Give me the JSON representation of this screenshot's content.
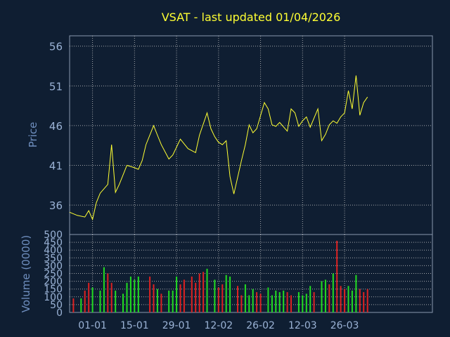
{
  "chart_data": [
    {
      "type": "line",
      "title": "VSAT - last updated 01/04/2026",
      "ylabel": "Price",
      "ylim": [
        32.3,
        57.3
      ],
      "yticks": [
        36,
        41,
        46,
        51,
        56
      ],
      "xlim": [
        0,
        95
      ],
      "xtick_labels": [
        {
          "x": 6,
          "label": "01-01"
        },
        {
          "x": 17,
          "label": "15-01"
        },
        {
          "x": 28,
          "label": "29-01"
        },
        {
          "x": 39,
          "label": "12-02"
        },
        {
          "x": 50,
          "label": "26-02"
        },
        {
          "x": 61,
          "label": "12-03"
        },
        {
          "x": 72,
          "label": "26-03"
        }
      ],
      "grid": true,
      "line_color": "#ffff33",
      "series": [
        {
          "x": [
            0,
            2,
            4,
            5,
            6,
            7,
            8,
            10,
            11,
            12,
            13,
            15,
            17,
            18,
            19,
            20,
            22,
            23,
            24,
            26,
            27,
            29,
            31,
            33,
            34,
            36,
            37,
            38,
            39,
            40,
            41,
            42,
            43,
            45,
            46,
            47,
            48,
            49,
            51,
            52,
            53,
            54,
            55,
            57,
            58,
            59,
            60,
            61,
            62,
            63,
            65,
            66,
            67,
            68,
            69,
            70,
            71,
            72,
            73,
            74,
            75,
            76,
            77,
            78
          ],
          "values": [
            35.1,
            34.7,
            34.5,
            35.3,
            34.2,
            36.3,
            37.5,
            38.6,
            43.6,
            37.6,
            38.6,
            41.0,
            40.7,
            40.5,
            41.6,
            43.6,
            46.0,
            44.8,
            43.6,
            41.8,
            42.3,
            44.3,
            43.1,
            42.6,
            44.8,
            47.6,
            45.6,
            44.6,
            43.9,
            43.6,
            44.1,
            39.6,
            37.4,
            41.6,
            43.6,
            46.1,
            45.1,
            45.6,
            48.9,
            48.1,
            46.1,
            45.9,
            46.4,
            45.3,
            48.1,
            47.6,
            45.9,
            46.6,
            47.1,
            45.8,
            48.1,
            44.1,
            44.9,
            46.1,
            46.6,
            46.3,
            47.1,
            47.6,
            50.4,
            48.1,
            52.3,
            47.3,
            48.9,
            49.6
          ]
        }
      ]
    },
    {
      "type": "bar",
      "ylabel": "Volume (0000)",
      "ylim": [
        0,
        500
      ],
      "yticks": [
        0,
        50,
        100,
        150,
        200,
        250,
        300,
        350,
        400,
        450,
        500
      ],
      "up_color": "#22dd22",
      "down_color": "#dd2222",
      "bars": [
        {
          "x": 1,
          "v": 90,
          "c": "down"
        },
        {
          "x": 3,
          "v": 90,
          "c": "up"
        },
        {
          "x": 4,
          "v": 140,
          "c": "down"
        },
        {
          "x": 5,
          "v": 190,
          "c": "down"
        },
        {
          "x": 6,
          "v": 160,
          "c": "up"
        },
        {
          "x": 8,
          "v": 140,
          "c": "up"
        },
        {
          "x": 9,
          "v": 290,
          "c": "up"
        },
        {
          "x": 10,
          "v": 250,
          "c": "down"
        },
        {
          "x": 11,
          "v": 190,
          "c": "down"
        },
        {
          "x": 12,
          "v": 140,
          "c": "up"
        },
        {
          "x": 14,
          "v": 120,
          "c": "up"
        },
        {
          "x": 15,
          "v": 190,
          "c": "up"
        },
        {
          "x": 16,
          "v": 230,
          "c": "up"
        },
        {
          "x": 17,
          "v": 210,
          "c": "up"
        },
        {
          "x": 18,
          "v": 230,
          "c": "up"
        },
        {
          "x": 21,
          "v": 230,
          "c": "down"
        },
        {
          "x": 22,
          "v": 180,
          "c": "down"
        },
        {
          "x": 23,
          "v": 150,
          "c": "up"
        },
        {
          "x": 24,
          "v": 120,
          "c": "down"
        },
        {
          "x": 26,
          "v": 140,
          "c": "up"
        },
        {
          "x": 27,
          "v": 140,
          "c": "up"
        },
        {
          "x": 28,
          "v": 230,
          "c": "up"
        },
        {
          "x": 29,
          "v": 180,
          "c": "down"
        },
        {
          "x": 30,
          "v": 210,
          "c": "down"
        },
        {
          "x": 32,
          "v": 230,
          "c": "down"
        },
        {
          "x": 33,
          "v": 190,
          "c": "down"
        },
        {
          "x": 34,
          "v": 250,
          "c": "down"
        },
        {
          "x": 35,
          "v": 260,
          "c": "down"
        },
        {
          "x": 36,
          "v": 280,
          "c": "up"
        },
        {
          "x": 38,
          "v": 210,
          "c": "up"
        },
        {
          "x": 39,
          "v": 160,
          "c": "down"
        },
        {
          "x": 40,
          "v": 180,
          "c": "down"
        },
        {
          "x": 41,
          "v": 240,
          "c": "up"
        },
        {
          "x": 42,
          "v": 230,
          "c": "up"
        },
        {
          "x": 44,
          "v": 170,
          "c": "down"
        },
        {
          "x": 45,
          "v": 110,
          "c": "down"
        },
        {
          "x": 46,
          "v": 180,
          "c": "up"
        },
        {
          "x": 47,
          "v": 110,
          "c": "up"
        },
        {
          "x": 48,
          "v": 150,
          "c": "up"
        },
        {
          "x": 49,
          "v": 130,
          "c": "down"
        },
        {
          "x": 50,
          "v": 120,
          "c": "down"
        },
        {
          "x": 52,
          "v": 160,
          "c": "up"
        },
        {
          "x": 53,
          "v": 110,
          "c": "up"
        },
        {
          "x": 54,
          "v": 140,
          "c": "up"
        },
        {
          "x": 55,
          "v": 130,
          "c": "up"
        },
        {
          "x": 56,
          "v": 140,
          "c": "up"
        },
        {
          "x": 57,
          "v": 130,
          "c": "down"
        },
        {
          "x": 58,
          "v": 110,
          "c": "down"
        },
        {
          "x": 60,
          "v": 130,
          "c": "up"
        },
        {
          "x": 61,
          "v": 110,
          "c": "up"
        },
        {
          "x": 62,
          "v": 120,
          "c": "up"
        },
        {
          "x": 63,
          "v": 170,
          "c": "up"
        },
        {
          "x": 64,
          "v": 130,
          "c": "down"
        },
        {
          "x": 66,
          "v": 200,
          "c": "up"
        },
        {
          "x": 67,
          "v": 210,
          "c": "up"
        },
        {
          "x": 68,
          "v": 180,
          "c": "down"
        },
        {
          "x": 69,
          "v": 250,
          "c": "up"
        },
        {
          "x": 70,
          "v": 460,
          "c": "down"
        },
        {
          "x": 71,
          "v": 170,
          "c": "down"
        },
        {
          "x": 72,
          "v": 150,
          "c": "down"
        },
        {
          "x": 73,
          "v": 170,
          "c": "up"
        },
        {
          "x": 74,
          "v": 140,
          "c": "up"
        },
        {
          "x": 75,
          "v": 240,
          "c": "up"
        },
        {
          "x": 76,
          "v": 150,
          "c": "down"
        },
        {
          "x": 77,
          "v": 130,
          "c": "down"
        },
        {
          "x": 78,
          "v": 150,
          "c": "down"
        }
      ]
    }
  ]
}
